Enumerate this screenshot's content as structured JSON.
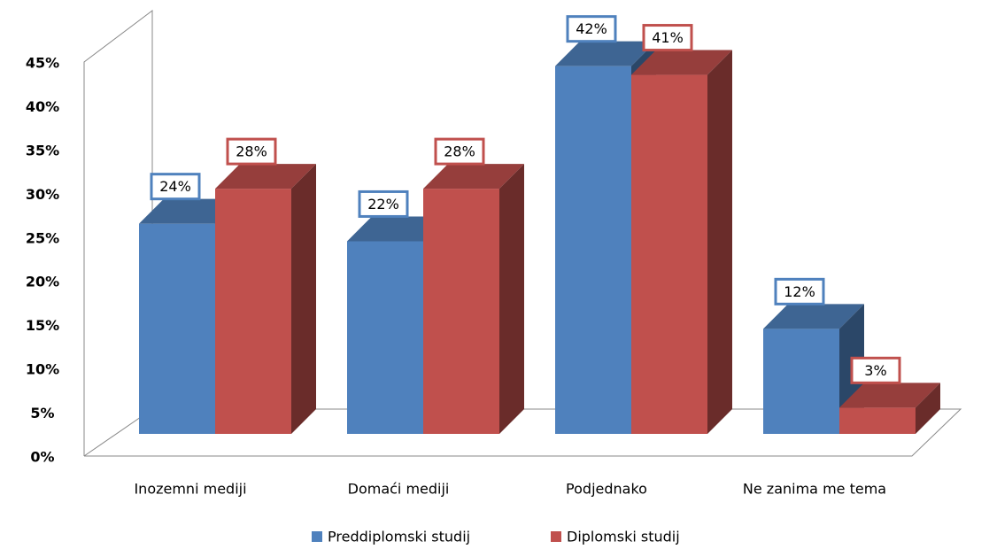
{
  "chart_data": {
    "type": "bar3d",
    "categories": [
      "Inozemni mediji",
      "Domaći mediji",
      "Podjednako",
      "Ne zanima me tema"
    ],
    "series": [
      {
        "name": "Preddiplomski studij",
        "color": "#4f81bd",
        "values": [
          24,
          22,
          42,
          12
        ],
        "value_labels": [
          "24%",
          "22%",
          "42%",
          "12%"
        ]
      },
      {
        "name": "Diplomski studij",
        "color": "#c0504d",
        "values": [
          28,
          28,
          41,
          3
        ],
        "value_labels": [
          "28%",
          "28%",
          "41%",
          "3%"
        ]
      }
    ],
    "ylim": [
      0,
      45
    ],
    "yticks": [
      {
        "value": 0,
        "label": "0%"
      },
      {
        "value": 5,
        "label": "5%"
      },
      {
        "value": 10,
        "label": "10%"
      },
      {
        "value": 15,
        "label": "15%"
      },
      {
        "value": 20,
        "label": "20%"
      },
      {
        "value": 25,
        "label": "25%"
      },
      {
        "value": 30,
        "label": "30%"
      },
      {
        "value": 35,
        "label": "35%"
      },
      {
        "value": 40,
        "label": "40%"
      },
      {
        "value": 45,
        "label": "45%"
      }
    ],
    "legend": "bottom"
  }
}
